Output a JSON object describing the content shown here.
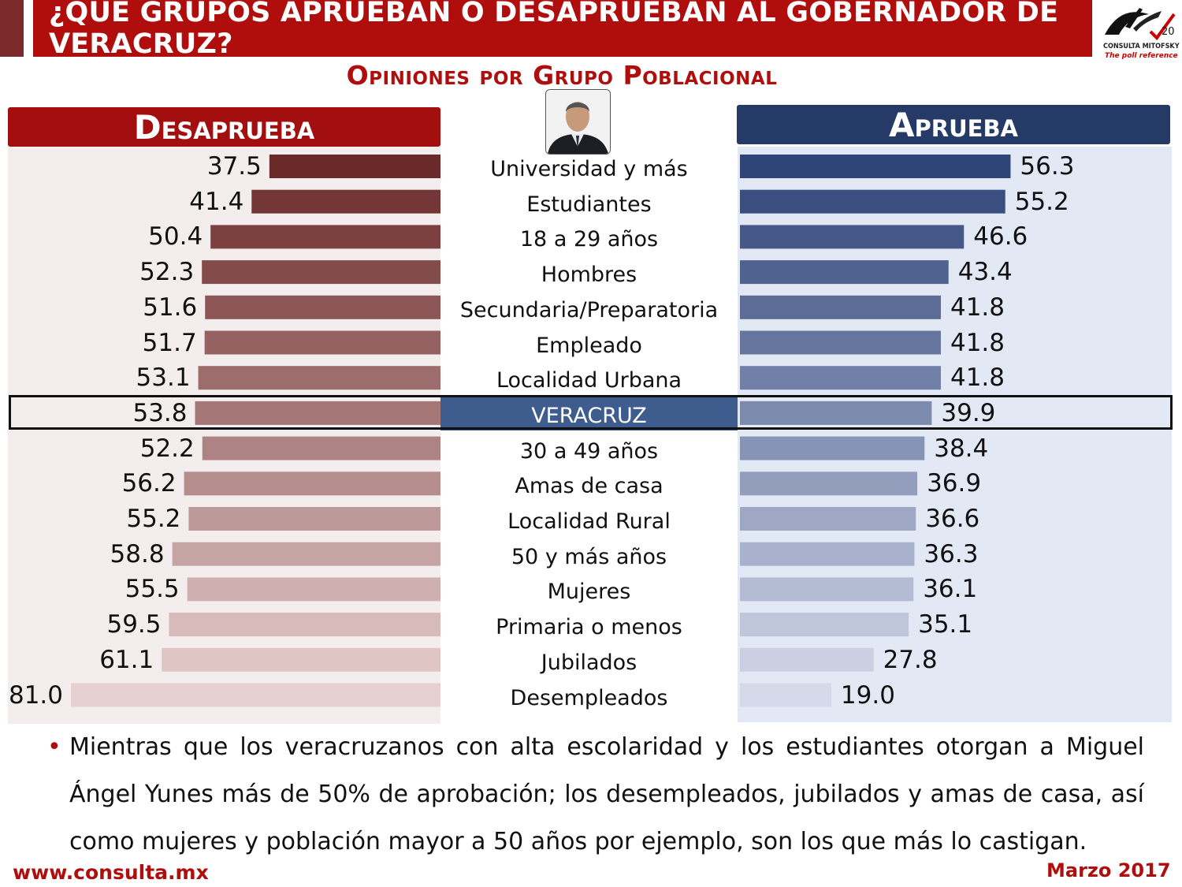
{
  "header": {
    "title": "¿QUÉ GRUPOS APRUEBAN O DESAPRUEBAN AL GOBERNADOR DE VERACRUZ?",
    "subtitle": "Opiniones por Grupo Poblacional",
    "logo_brand": "CONSULTA MITOFSKY",
    "logo_badge": "20",
    "logo_tagline": "The poll reference"
  },
  "panels": {
    "left_header": "Desaprueba",
    "right_header": "Aprueba"
  },
  "chart_data": {
    "type": "bar",
    "categories": [
      "Universidad y más",
      "Estudiantes",
      "18 a 29 años",
      "Hombres",
      "Secundaria/Preparatoria",
      "Empleado",
      "Localidad Urbana",
      "VERACRUZ",
      "30 a 49 años",
      "Amas de casa",
      "Localidad Rural",
      "50 y más años",
      "Mujeres",
      "Primaria o menos",
      "Jubilados",
      "Desempleados"
    ],
    "series": [
      {
        "name": "Desaprueba",
        "values": [
          "37.5",
          "41.4",
          "50.4",
          "52.3",
          "51.6",
          "51.7",
          "53.1",
          "53.8",
          "52.2",
          "56.2",
          "55.2",
          "58.8",
          "55.5",
          "59.5",
          "61.1",
          "81.0"
        ]
      },
      {
        "name": "Aprueba",
        "values": [
          "56.3",
          "55.2",
          "46.6",
          "43.4",
          "41.8",
          "41.8",
          "41.8",
          "39.9",
          "38.4",
          "36.9",
          "36.6",
          "36.3",
          "36.1",
          "35.1",
          "27.8",
          "19.0"
        ]
      }
    ],
    "highlight": "VERACRUZ",
    "colors": {
      "disapprove": "#6b2a2a",
      "approve": "#2f4478"
    }
  },
  "bullet": {
    "text": "Mientras que los veracruzanos con alta escolaridad y los estudiantes otorgan a Miguel Ángel Yunes más de 50% de aprobación; los desempleados, jubilados y amas de casa, así como mujeres y población mayor a 50 años por ejemplo, son los que más lo castigan."
  },
  "footer": {
    "website": "www.consulta.mx",
    "date": "Marzo 2017"
  }
}
